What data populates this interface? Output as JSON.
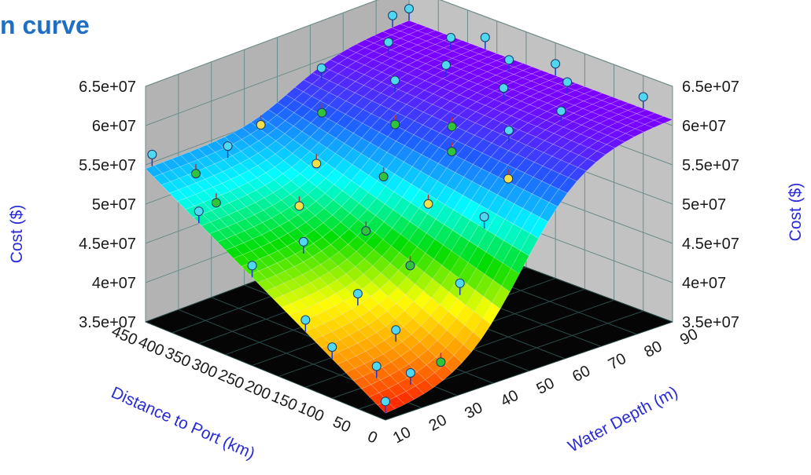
{
  "page": {
    "title": "n curve"
  },
  "chart_data": {
    "type": "surface3d",
    "z_label": "Cost ($)",
    "x_label": "Distance to Port (km)",
    "y_label": "Water Depth (m)",
    "z_ticks": [
      "3.5e+07",
      "4e+07",
      "4.5e+07",
      "5e+07",
      "5.5e+07",
      "6e+07",
      "6.5e+07"
    ],
    "x_ticks": [
      "0",
      "50",
      "100",
      "150",
      "200",
      "250",
      "300",
      "350",
      "400",
      "450"
    ],
    "y_ticks": [
      "10",
      "20",
      "30",
      "40",
      "50",
      "60",
      "70",
      "80",
      "90"
    ],
    "z_range": [
      35000000,
      65000000
    ],
    "x_range": [
      0,
      450
    ],
    "y_range": [
      10,
      90
    ],
    "surface_model": "cost rises with water depth (sigmoid, ~35e6 at 10 m to ~60e6 at 90 m) and with distance to port in shallow water",
    "colormap": [
      "#ff0000",
      "#ff8c00",
      "#ffff00",
      "#00dd00",
      "#00ffff",
      "#1e5bff",
      "#7a00ff",
      "#d400ff"
    ],
    "points_color_key": {
      "cyan": "#4fd8f0",
      "green": "#2fc43a",
      "yellow": "#f2e04a"
    },
    "points": [
      {
        "d": 0,
        "w": 10,
        "c": "cyan"
      },
      {
        "d": 20,
        "w": 20,
        "c": "cyan"
      },
      {
        "d": 50,
        "w": 15,
        "c": "cyan"
      },
      {
        "d": 100,
        "w": 10,
        "c": "cyan"
      },
      {
        "d": 150,
        "w": 10,
        "c": "cyan"
      },
      {
        "d": 250,
        "w": 10,
        "c": "cyan"
      },
      {
        "d": 350,
        "w": 10,
        "c": "cyan"
      },
      {
        "d": 450,
        "w": 12,
        "c": "cyan"
      },
      {
        "d": 30,
        "w": 30,
        "c": "green"
      },
      {
        "d": 80,
        "w": 25,
        "c": "cyan"
      },
      {
        "d": 150,
        "w": 25,
        "c": "cyan"
      },
      {
        "d": 250,
        "w": 25,
        "c": "cyan"
      },
      {
        "d": 380,
        "w": 20,
        "c": "green"
      },
      {
        "d": 430,
        "w": 22,
        "c": "green"
      },
      {
        "d": 60,
        "w": 40,
        "c": "cyan"
      },
      {
        "d": 150,
        "w": 40,
        "c": "green"
      },
      {
        "d": 230,
        "w": 40,
        "c": "green"
      },
      {
        "d": 320,
        "w": 35,
        "c": "yellow"
      },
      {
        "d": 420,
        "w": 30,
        "c": "cyan"
      },
      {
        "d": 80,
        "w": 50,
        "c": "cyan"
      },
      {
        "d": 180,
        "w": 50,
        "c": "yellow"
      },
      {
        "d": 260,
        "w": 50,
        "c": "green"
      },
      {
        "d": 350,
        "w": 45,
        "c": "yellow"
      },
      {
        "d": 450,
        "w": 45,
        "c": "yellow"
      },
      {
        "d": 100,
        "w": 60,
        "c": "yellow"
      },
      {
        "d": 200,
        "w": 60,
        "c": "green"
      },
      {
        "d": 300,
        "w": 60,
        "c": "green"
      },
      {
        "d": 400,
        "w": 55,
        "c": "green"
      },
      {
        "d": 130,
        "w": 65,
        "c": "cyan"
      },
      {
        "d": 230,
        "w": 65,
        "c": "green"
      },
      {
        "d": 330,
        "w": 65,
        "c": "cyan"
      },
      {
        "d": 430,
        "w": 60,
        "c": "cyan"
      },
      {
        "d": 100,
        "w": 75,
        "c": "cyan"
      },
      {
        "d": 200,
        "w": 75,
        "c": "cyan"
      },
      {
        "d": 300,
        "w": 75,
        "c": "cyan"
      },
      {
        "d": 400,
        "w": 75,
        "c": "cyan"
      },
      {
        "d": 150,
        "w": 85,
        "c": "cyan"
      },
      {
        "d": 250,
        "w": 85,
        "c": "cyan"
      },
      {
        "d": 350,
        "w": 85,
        "c": "cyan"
      },
      {
        "d": 450,
        "w": 85,
        "c": "cyan"
      },
      {
        "d": 50,
        "w": 90,
        "c": "cyan"
      },
      {
        "d": 200,
        "w": 90,
        "c": "cyan"
      },
      {
        "d": 320,
        "w": 90,
        "c": "cyan"
      },
      {
        "d": 450,
        "w": 90,
        "c": "cyan"
      }
    ]
  }
}
